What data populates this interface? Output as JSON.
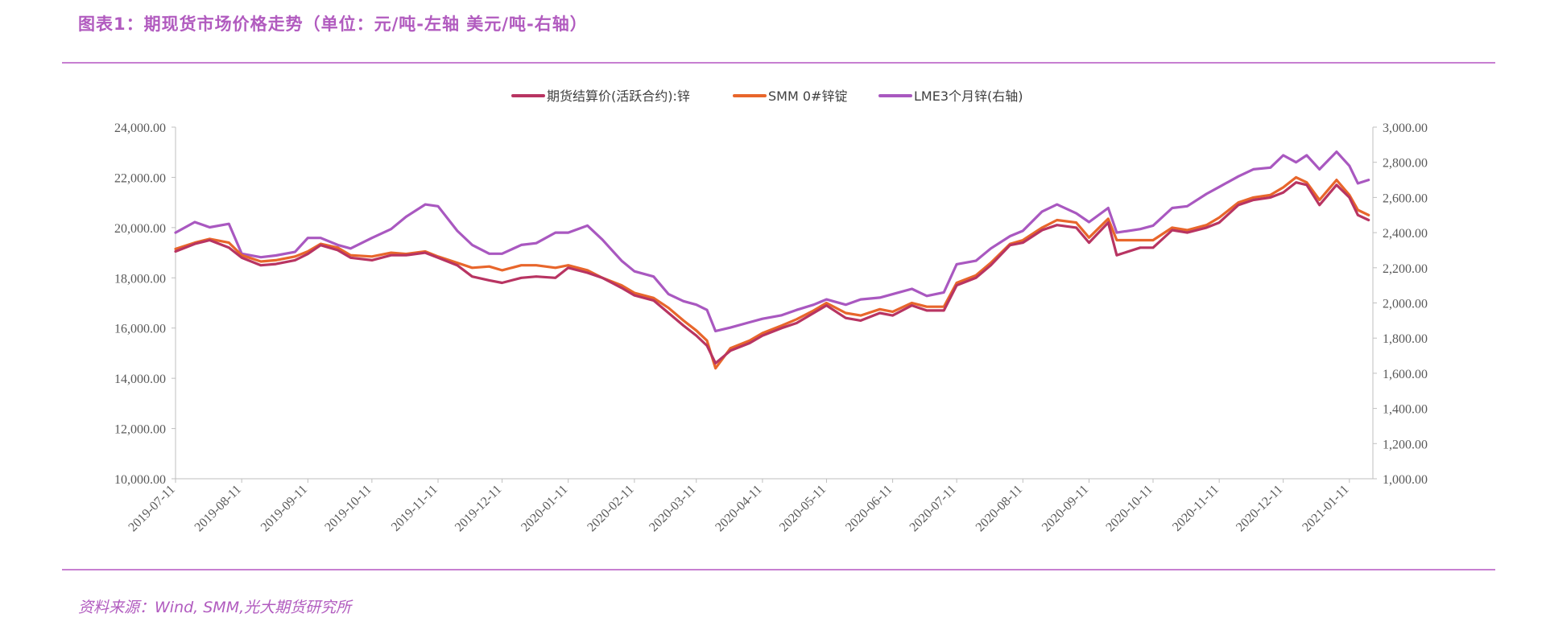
{
  "header": {
    "title": "图表1：期现货市场价格走势（单位：元/吨-左轴  美元/吨-右轴）",
    "source": "资料来源：Wind, SMM,光大期货研究所"
  },
  "colors": {
    "futures": "#b83462",
    "smm": "#e8662b",
    "lme": "#a958c0",
    "accent": "#b15bbf",
    "axis": "#bfbfbf"
  },
  "chart_data": {
    "type": "line",
    "title": "",
    "legend_position": "top-center",
    "grid": false,
    "x_tick_labels": [
      "2019-07-11",
      "2019-08-11",
      "2019-09-11",
      "2019-10-11",
      "2019-11-11",
      "2019-12-11",
      "2020-01-11",
      "2020-02-11",
      "2020-03-11",
      "2020-04-11",
      "2020-05-11",
      "2020-06-11",
      "2020-07-11",
      "2020-08-11",
      "2020-09-11",
      "2020-10-11",
      "2020-11-11",
      "2020-12-11",
      "2021-01-11"
    ],
    "y_left": {
      "range": [
        10000,
        24000
      ],
      "ticks": [
        "10,000.00",
        "12,000.00",
        "14,000.00",
        "16,000.00",
        "18,000.00",
        "20,000.00",
        "22,000.00",
        "24,000.00"
      ]
    },
    "y_right": {
      "range": [
        1000,
        3000
      ],
      "ticks": [
        "1,000.00",
        "1,200.00",
        "1,400.00",
        "1,600.00",
        "1,800.00",
        "2,000.00",
        "2,200.00",
        "2,400.00",
        "2,600.00",
        "2,800.00",
        "3,000.00"
      ]
    },
    "series": [
      {
        "name": "期货结算价(活跃合约):锌",
        "axis": "left",
        "points": [
          [
            "2019-07-11",
            19050
          ],
          [
            "2019-07-20",
            19350
          ],
          [
            "2019-07-27",
            19500
          ],
          [
            "2019-08-05",
            19200
          ],
          [
            "2019-08-11",
            18800
          ],
          [
            "2019-08-20",
            18500
          ],
          [
            "2019-08-27",
            18550
          ],
          [
            "2019-09-05",
            18700
          ],
          [
            "2019-09-11",
            18950
          ],
          [
            "2019-09-17",
            19300
          ],
          [
            "2019-09-25",
            19100
          ],
          [
            "2019-10-01",
            18800
          ],
          [
            "2019-10-11",
            18700
          ],
          [
            "2019-10-20",
            18900
          ],
          [
            "2019-10-27",
            18900
          ],
          [
            "2019-11-05",
            19000
          ],
          [
            "2019-11-11",
            18800
          ],
          [
            "2019-11-20",
            18500
          ],
          [
            "2019-11-27",
            18050
          ],
          [
            "2019-12-05",
            17900
          ],
          [
            "2019-12-11",
            17800
          ],
          [
            "2019-12-20",
            18000
          ],
          [
            "2019-12-27",
            18050
          ],
          [
            "2020-01-05",
            18000
          ],
          [
            "2020-01-11",
            18400
          ],
          [
            "2020-01-20",
            18200
          ],
          [
            "2020-01-27",
            18000
          ],
          [
            "2020-02-05",
            17600
          ],
          [
            "2020-02-11",
            17300
          ],
          [
            "2020-02-20",
            17100
          ],
          [
            "2020-02-27",
            16600
          ],
          [
            "2020-03-05",
            16100
          ],
          [
            "2020-03-11",
            15700
          ],
          [
            "2020-03-16",
            15300
          ],
          [
            "2020-03-20",
            14600
          ],
          [
            "2020-03-27",
            15100
          ],
          [
            "2020-04-05",
            15400
          ],
          [
            "2020-04-11",
            15700
          ],
          [
            "2020-04-20",
            16000
          ],
          [
            "2020-04-27",
            16200
          ],
          [
            "2020-05-05",
            16600
          ],
          [
            "2020-05-11",
            16900
          ],
          [
            "2020-05-20",
            16400
          ],
          [
            "2020-05-27",
            16300
          ],
          [
            "2020-06-05",
            16600
          ],
          [
            "2020-06-11",
            16500
          ],
          [
            "2020-06-20",
            16900
          ],
          [
            "2020-06-27",
            16700
          ],
          [
            "2020-07-05",
            16700
          ],
          [
            "2020-07-11",
            17700
          ],
          [
            "2020-07-20",
            18000
          ],
          [
            "2020-07-27",
            18500
          ],
          [
            "2020-08-05",
            19300
          ],
          [
            "2020-08-11",
            19400
          ],
          [
            "2020-08-20",
            19900
          ],
          [
            "2020-08-27",
            20100
          ],
          [
            "2020-09-05",
            20000
          ],
          [
            "2020-09-11",
            19400
          ],
          [
            "2020-09-20",
            20200
          ],
          [
            "2020-09-24",
            18900
          ],
          [
            "2020-10-05",
            19200
          ],
          [
            "2020-10-11",
            19200
          ],
          [
            "2020-10-20",
            19900
          ],
          [
            "2020-10-27",
            19800
          ],
          [
            "2020-11-05",
            20000
          ],
          [
            "2020-11-11",
            20200
          ],
          [
            "2020-11-20",
            20900
          ],
          [
            "2020-11-27",
            21100
          ],
          [
            "2020-12-05",
            21200
          ],
          [
            "2020-12-11",
            21400
          ],
          [
            "2020-12-17",
            21800
          ],
          [
            "2020-12-22",
            21700
          ],
          [
            "2020-12-28",
            20900
          ],
          [
            "2021-01-05",
            21700
          ],
          [
            "2021-01-11",
            21200
          ],
          [
            "2021-01-15",
            20500
          ],
          [
            "2021-01-20",
            20300
          ]
        ]
      },
      {
        "name": "SMM 0#锌锭",
        "axis": "left",
        "points": [
          [
            "2019-07-11",
            19150
          ],
          [
            "2019-07-20",
            19400
          ],
          [
            "2019-07-27",
            19550
          ],
          [
            "2019-08-05",
            19400
          ],
          [
            "2019-08-11",
            18900
          ],
          [
            "2019-08-20",
            18650
          ],
          [
            "2019-08-27",
            18700
          ],
          [
            "2019-09-05",
            18850
          ],
          [
            "2019-09-11",
            19050
          ],
          [
            "2019-09-17",
            19350
          ],
          [
            "2019-09-25",
            19200
          ],
          [
            "2019-10-01",
            18900
          ],
          [
            "2019-10-11",
            18850
          ],
          [
            "2019-10-20",
            19000
          ],
          [
            "2019-10-27",
            18950
          ],
          [
            "2019-11-05",
            19050
          ],
          [
            "2019-11-11",
            18850
          ],
          [
            "2019-11-20",
            18600
          ],
          [
            "2019-11-27",
            18400
          ],
          [
            "2019-12-05",
            18450
          ],
          [
            "2019-12-11",
            18300
          ],
          [
            "2019-12-20",
            18500
          ],
          [
            "2019-12-27",
            18500
          ],
          [
            "2020-01-05",
            18400
          ],
          [
            "2020-01-11",
            18500
          ],
          [
            "2020-01-20",
            18300
          ],
          [
            "2020-01-27",
            18000
          ],
          [
            "2020-02-05",
            17700
          ],
          [
            "2020-02-11",
            17400
          ],
          [
            "2020-02-20",
            17200
          ],
          [
            "2020-02-27",
            16800
          ],
          [
            "2020-03-05",
            16300
          ],
          [
            "2020-03-11",
            15900
          ],
          [
            "2020-03-16",
            15500
          ],
          [
            "2020-03-20",
            14400
          ],
          [
            "2020-03-27",
            15200
          ],
          [
            "2020-04-05",
            15500
          ],
          [
            "2020-04-11",
            15800
          ],
          [
            "2020-04-20",
            16100
          ],
          [
            "2020-04-27",
            16350
          ],
          [
            "2020-05-05",
            16700
          ],
          [
            "2020-05-11",
            17000
          ],
          [
            "2020-05-20",
            16600
          ],
          [
            "2020-05-27",
            16500
          ],
          [
            "2020-06-05",
            16750
          ],
          [
            "2020-06-11",
            16650
          ],
          [
            "2020-06-20",
            17000
          ],
          [
            "2020-06-27",
            16850
          ],
          [
            "2020-07-05",
            16850
          ],
          [
            "2020-07-11",
            17800
          ],
          [
            "2020-07-20",
            18100
          ],
          [
            "2020-07-27",
            18600
          ],
          [
            "2020-08-05",
            19350
          ],
          [
            "2020-08-11",
            19500
          ],
          [
            "2020-08-20",
            20000
          ],
          [
            "2020-08-27",
            20300
          ],
          [
            "2020-09-05",
            20200
          ],
          [
            "2020-09-11",
            19600
          ],
          [
            "2020-09-20",
            20350
          ],
          [
            "2020-09-24",
            19500
          ],
          [
            "2020-10-05",
            19500
          ],
          [
            "2020-10-11",
            19500
          ],
          [
            "2020-10-20",
            20000
          ],
          [
            "2020-10-27",
            19900
          ],
          [
            "2020-11-05",
            20100
          ],
          [
            "2020-11-11",
            20400
          ],
          [
            "2020-11-20",
            21000
          ],
          [
            "2020-11-27",
            21200
          ],
          [
            "2020-12-05",
            21300
          ],
          [
            "2020-12-11",
            21600
          ],
          [
            "2020-12-17",
            22000
          ],
          [
            "2020-12-22",
            21800
          ],
          [
            "2020-12-28",
            21100
          ],
          [
            "2021-01-05",
            21900
          ],
          [
            "2021-01-11",
            21300
          ],
          [
            "2021-01-15",
            20700
          ],
          [
            "2021-01-20",
            20500
          ]
        ]
      },
      {
        "name": "LME3个月锌(右轴)",
        "axis": "right",
        "points": [
          [
            "2019-07-11",
            2400
          ],
          [
            "2019-07-20",
            2460
          ],
          [
            "2019-07-27",
            2430
          ],
          [
            "2019-08-05",
            2450
          ],
          [
            "2019-08-11",
            2280
          ],
          [
            "2019-08-20",
            2260
          ],
          [
            "2019-08-27",
            2270
          ],
          [
            "2019-09-05",
            2290
          ],
          [
            "2019-09-11",
            2370
          ],
          [
            "2019-09-17",
            2370
          ],
          [
            "2019-09-25",
            2330
          ],
          [
            "2019-10-01",
            2310
          ],
          [
            "2019-10-11",
            2370
          ],
          [
            "2019-10-20",
            2420
          ],
          [
            "2019-10-27",
            2490
          ],
          [
            "2019-11-05",
            2560
          ],
          [
            "2019-11-11",
            2550
          ],
          [
            "2019-11-20",
            2410
          ],
          [
            "2019-11-27",
            2330
          ],
          [
            "2019-12-05",
            2280
          ],
          [
            "2019-12-11",
            2280
          ],
          [
            "2019-12-20",
            2330
          ],
          [
            "2019-12-27",
            2340
          ],
          [
            "2020-01-05",
            2400
          ],
          [
            "2020-01-11",
            2400
          ],
          [
            "2020-01-20",
            2440
          ],
          [
            "2020-01-27",
            2360
          ],
          [
            "2020-02-05",
            2240
          ],
          [
            "2020-02-11",
            2180
          ],
          [
            "2020-02-20",
            2150
          ],
          [
            "2020-02-27",
            2050
          ],
          [
            "2020-03-05",
            2010
          ],
          [
            "2020-03-11",
            1990
          ],
          [
            "2020-03-16",
            1960
          ],
          [
            "2020-03-20",
            1840
          ],
          [
            "2020-03-27",
            1860
          ],
          [
            "2020-04-05",
            1890
          ],
          [
            "2020-04-11",
            1910
          ],
          [
            "2020-04-20",
            1930
          ],
          [
            "2020-04-27",
            1960
          ],
          [
            "2020-05-05",
            1990
          ],
          [
            "2020-05-11",
            2020
          ],
          [
            "2020-05-20",
            1990
          ],
          [
            "2020-05-27",
            2020
          ],
          [
            "2020-06-05",
            2030
          ],
          [
            "2020-06-11",
            2050
          ],
          [
            "2020-06-20",
            2080
          ],
          [
            "2020-06-27",
            2040
          ],
          [
            "2020-07-05",
            2060
          ],
          [
            "2020-07-11",
            2220
          ],
          [
            "2020-07-20",
            2240
          ],
          [
            "2020-07-27",
            2310
          ],
          [
            "2020-08-05",
            2380
          ],
          [
            "2020-08-11",
            2410
          ],
          [
            "2020-08-20",
            2520
          ],
          [
            "2020-08-27",
            2560
          ],
          [
            "2020-09-05",
            2510
          ],
          [
            "2020-09-11",
            2460
          ],
          [
            "2020-09-20",
            2540
          ],
          [
            "2020-09-24",
            2400
          ],
          [
            "2020-10-05",
            2420
          ],
          [
            "2020-10-11",
            2440
          ],
          [
            "2020-10-20",
            2540
          ],
          [
            "2020-10-27",
            2550
          ],
          [
            "2020-11-05",
            2620
          ],
          [
            "2020-11-11",
            2660
          ],
          [
            "2020-11-20",
            2720
          ],
          [
            "2020-11-27",
            2760
          ],
          [
            "2020-12-05",
            2770
          ],
          [
            "2020-12-11",
            2840
          ],
          [
            "2020-12-17",
            2800
          ],
          [
            "2020-12-22",
            2840
          ],
          [
            "2020-12-28",
            2760
          ],
          [
            "2021-01-05",
            2860
          ],
          [
            "2021-01-11",
            2780
          ],
          [
            "2021-01-15",
            2680
          ],
          [
            "2021-01-20",
            2700
          ]
        ]
      }
    ]
  }
}
